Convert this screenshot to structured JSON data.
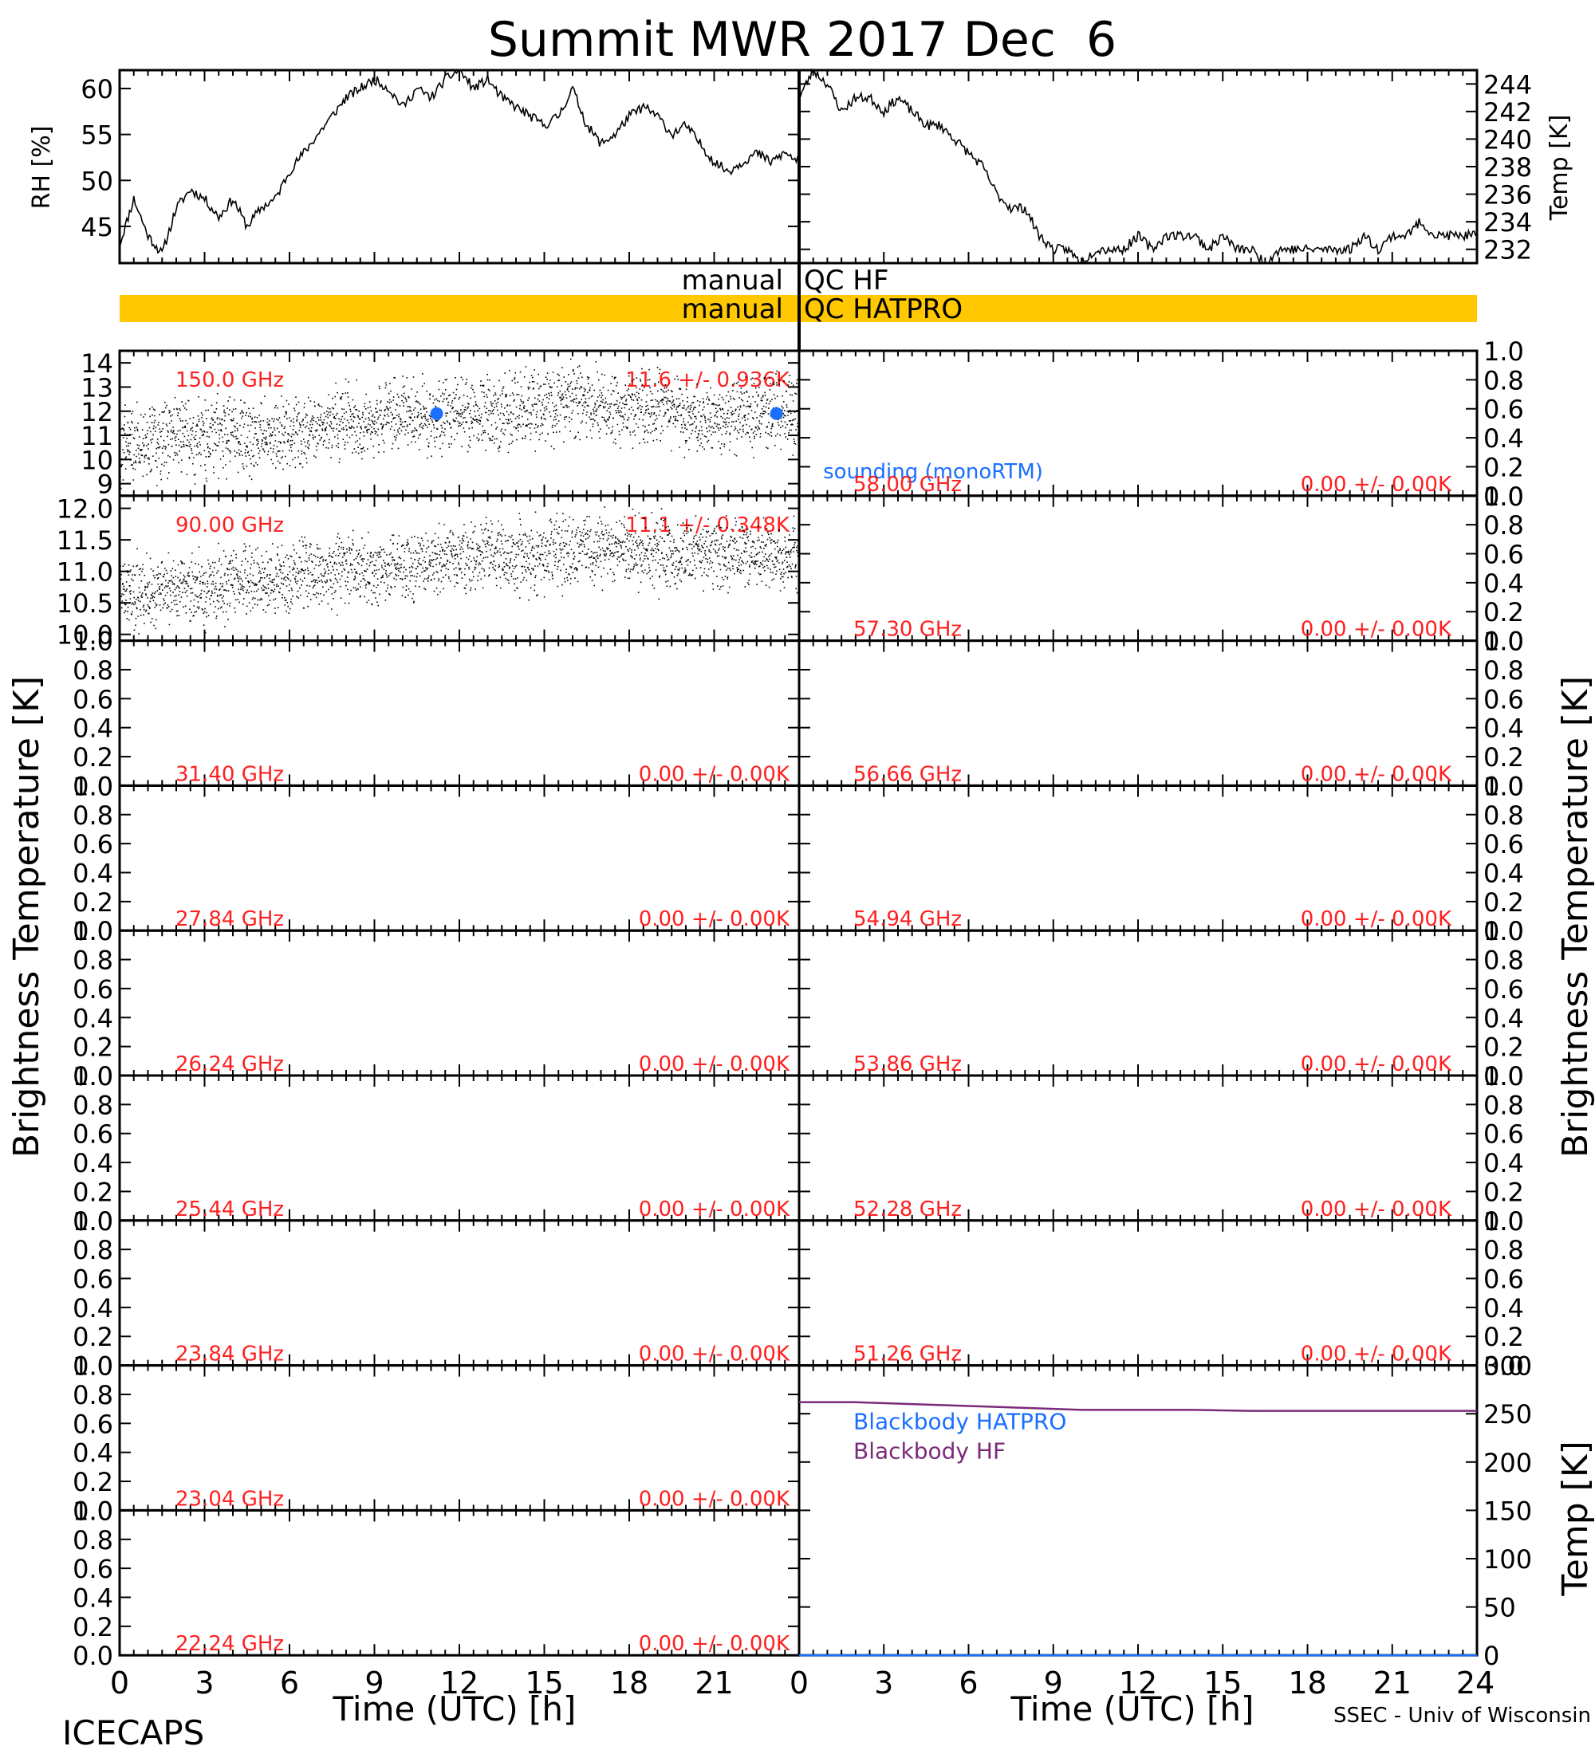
{
  "title": "Summit MWR 2017 Dec  6",
  "footer": {
    "left": "ICECAPS",
    "right": "SSEC - Univ of Wisconsin",
    "xlabel_left": "Time (UTC) [h]",
    "xlabel_right": "Time (UTC) [h]"
  },
  "side_labels": {
    "left": "Brightness Temperature [K]",
    "right": "Brightness Temperature [K]"
  },
  "qc_bars": [
    {
      "label_left": "manual",
      "label_right": "QC HF",
      "flagged": false,
      "color": "#ffffff"
    },
    {
      "label_left": "manual",
      "label_right": "QC HATPRO",
      "flagged": true,
      "color": "#ffc800"
    }
  ],
  "colors": {
    "data": "#000000",
    "label_red": "#ff2020",
    "sounding_blue": "#1a6fff",
    "blackbody_hatpro": "#1a6fff",
    "blackbody_hf": "#7a2a7a",
    "qc_flag": "#ffc800"
  },
  "chart_data": [
    {
      "id": "met-rh",
      "type": "line",
      "ylabel": "RH [%]",
      "x_range": [
        0,
        24
      ],
      "ylim": [
        41,
        62
      ],
      "yticks": [
        45,
        50,
        55,
        60
      ],
      "xticks": [
        0,
        3,
        6,
        9,
        12,
        15,
        18,
        21,
        24
      ],
      "series": [
        {
          "x": [
            0,
            0.5,
            1,
            1.5,
            2,
            2.5,
            3,
            3.5,
            4,
            4.5,
            5,
            5.5,
            6,
            6.5,
            7,
            7.5,
            8,
            8.5,
            9,
            9.5,
            10,
            10.5,
            11,
            11.5,
            12,
            12.5,
            13,
            13.5,
            14,
            14.5,
            15,
            15.5,
            16,
            16.5,
            17,
            17.5,
            18,
            18.5,
            19,
            19.5,
            20,
            20.5,
            21,
            21.5,
            22,
            22.5,
            23,
            23.5,
            24
          ],
          "values": [
            43,
            48,
            44,
            42,
            47,
            49,
            48,
            46,
            48,
            45,
            47,
            48,
            51,
            53,
            55,
            57,
            59,
            60,
            61,
            60,
            58,
            60,
            59,
            61,
            62,
            60,
            61,
            59,
            58,
            57,
            56,
            57,
            60,
            56,
            54,
            55,
            57,
            58,
            57,
            55,
            56,
            54,
            52,
            51,
            52,
            53,
            52,
            53,
            52
          ]
        }
      ]
    },
    {
      "id": "met-temp",
      "type": "line",
      "ylabel": "Temp [K]",
      "x_range": [
        0,
        24
      ],
      "ylim": [
        231,
        245
      ],
      "yticks": [
        232,
        234,
        236,
        238,
        240,
        242,
        244
      ],
      "xticks": [
        0,
        3,
        6,
        9,
        12,
        15,
        18,
        21,
        24
      ],
      "series": [
        {
          "x": [
            0,
            0.5,
            1,
            1.5,
            2,
            2.5,
            3,
            3.5,
            4,
            4.5,
            5,
            5.5,
            6,
            6.5,
            7,
            7.5,
            8,
            8.5,
            9,
            9.5,
            10,
            10.5,
            11,
            11.5,
            12,
            12.5,
            13,
            13.5,
            14,
            14.5,
            15,
            15.5,
            16,
            16.5,
            17,
            17.5,
            18,
            18.5,
            19,
            19.5,
            20,
            20.5,
            21,
            21.5,
            22,
            22.5,
            23,
            23.5,
            24
          ],
          "values": [
            243,
            245,
            244,
            242,
            243,
            243,
            242,
            243,
            242,
            241,
            241,
            240,
            239,
            238,
            236,
            235,
            235,
            233,
            232,
            232,
            231,
            232,
            232,
            232,
            233,
            232,
            233,
            233,
            233,
            232,
            233,
            232,
            232,
            231,
            232,
            232,
            232,
            232,
            232,
            232,
            233,
            232,
            233,
            233,
            234,
            233,
            233,
            233,
            233
          ]
        }
      ]
    },
    {
      "id": "tb-150",
      "type": "scatter",
      "channel": "150.0 GHz",
      "stats": "11.6 +/- 0.936K",
      "x_range": [
        0,
        24
      ],
      "ylim": [
        8.5,
        14.5
      ],
      "yticks": [
        9,
        10,
        11,
        12,
        13,
        14
      ],
      "series": [
        {
          "x": [
            0,
            1,
            2,
            3,
            4,
            5,
            6,
            7,
            8,
            9,
            10,
            11,
            12,
            13,
            14,
            15,
            16,
            17,
            18,
            19,
            20,
            21,
            22,
            23,
            24
          ],
          "values": [
            10.8,
            10.6,
            11.0,
            10.9,
            11.1,
            10.8,
            11.0,
            11.3,
            11.6,
            11.8,
            11.9,
            11.7,
            11.9,
            12.0,
            12.0,
            12.3,
            12.4,
            12.2,
            12.1,
            12.2,
            11.9,
            11.6,
            11.8,
            12.0,
            11.7
          ]
        }
      ],
      "sounding": {
        "label": "sounding (monoRTM)",
        "x": [
          11.2,
          23.2
        ],
        "values": [
          11.9,
          11.9
        ]
      }
    },
    {
      "id": "tb-90",
      "type": "scatter",
      "channel": "90.00 GHz",
      "stats": "11.1 +/- 0.348K",
      "x_range": [
        0,
        24
      ],
      "ylim": [
        9.9,
        12.2
      ],
      "yticks": [
        10.0,
        10.5,
        11.0,
        11.5,
        12.0
      ],
      "yticklabels": [
        "10.0",
        "10.5",
        "11.0",
        "11.5",
        "12.0"
      ],
      "series": [
        {
          "x": [
            0,
            1,
            2,
            3,
            4,
            5,
            6,
            7,
            8,
            9,
            10,
            11,
            12,
            13,
            14,
            15,
            16,
            17,
            18,
            19,
            20,
            21,
            22,
            23,
            24
          ],
          "values": [
            10.7,
            10.6,
            10.8,
            10.7,
            10.9,
            10.8,
            10.9,
            11.0,
            11.1,
            11.0,
            11.1,
            11.2,
            11.2,
            11.3,
            11.2,
            11.3,
            11.3,
            11.4,
            11.3,
            11.3,
            11.2,
            11.3,
            11.3,
            11.2,
            11.2
          ]
        }
      ]
    },
    {
      "id": "tb-58.00",
      "type": "scatter",
      "channel": "58.00 GHz",
      "stats": "0.00 +/- 0.00K",
      "ylim": [
        0,
        1
      ],
      "series": []
    },
    {
      "id": "tb-57.30",
      "type": "scatter",
      "channel": "57.30 GHz",
      "stats": "0.00 +/- 0.00K",
      "ylim": [
        0,
        1
      ],
      "series": []
    },
    {
      "id": "tb-31.40",
      "type": "scatter",
      "channel": "31.40 GHz",
      "stats": "0.00 +/- 0.00K",
      "ylim": [
        0,
        1
      ],
      "series": []
    },
    {
      "id": "tb-56.66",
      "type": "scatter",
      "channel": "56.66 GHz",
      "stats": "0.00 +/- 0.00K",
      "ylim": [
        0,
        1
      ],
      "series": []
    },
    {
      "id": "tb-27.84",
      "type": "scatter",
      "channel": "27.84 GHz",
      "stats": "0.00 +/- 0.00K",
      "ylim": [
        0,
        1
      ],
      "series": []
    },
    {
      "id": "tb-54.94",
      "type": "scatter",
      "channel": "54.94 GHz",
      "stats": "0.00 +/- 0.00K",
      "ylim": [
        0,
        1
      ],
      "series": []
    },
    {
      "id": "tb-26.24",
      "type": "scatter",
      "channel": "26.24 GHz",
      "stats": "0.00 +/- 0.00K",
      "ylim": [
        0,
        1
      ],
      "series": []
    },
    {
      "id": "tb-53.86",
      "type": "scatter",
      "channel": "53.86 GHz",
      "stats": "0.00 +/- 0.00K",
      "ylim": [
        0,
        1
      ],
      "series": []
    },
    {
      "id": "tb-25.44",
      "type": "scatter",
      "channel": "25.44 GHz",
      "stats": "0.00 +/- 0.00K",
      "ylim": [
        0,
        1
      ],
      "series": []
    },
    {
      "id": "tb-52.28",
      "type": "scatter",
      "channel": "52.28 GHz",
      "stats": "0.00 +/- 0.00K",
      "ylim": [
        0,
        1
      ],
      "series": []
    },
    {
      "id": "tb-23.84",
      "type": "scatter",
      "channel": "23.84 GHz",
      "stats": "0.00 +/- 0.00K",
      "ylim": [
        0,
        1
      ],
      "series": []
    },
    {
      "id": "tb-51.26",
      "type": "scatter",
      "channel": "51.26 GHz",
      "stats": "0.00 +/- 0.00K",
      "ylim": [
        0,
        1
      ],
      "series": []
    },
    {
      "id": "tb-23.04",
      "type": "scatter",
      "channel": "23.04 GHz",
      "stats": "0.00 +/- 0.00K",
      "ylim": [
        0,
        1
      ],
      "series": []
    },
    {
      "id": "tb-22.24",
      "type": "scatter",
      "channel": "22.24 GHz",
      "stats": "0.00 +/- 0.00K",
      "ylim": [
        0,
        1
      ],
      "series": []
    },
    {
      "id": "blackbody",
      "type": "line",
      "ylabel": "Temp [K]",
      "x_range": [
        0,
        24
      ],
      "ylim": [
        0,
        300
      ],
      "yticks": [
        0,
        50,
        100,
        150,
        200,
        250,
        300
      ],
      "xticks": [
        0,
        3,
        6,
        9,
        12,
        15,
        18,
        21,
        24
      ],
      "series": [
        {
          "name": "Blackbody HATPRO",
          "x": [
            0,
            24
          ],
          "values": [
            0,
            0
          ]
        },
        {
          "name": "Blackbody HF",
          "x": [
            0,
            2,
            4,
            6,
            8,
            10,
            12,
            14,
            16,
            18,
            20,
            22,
            24
          ],
          "values": [
            262,
            262,
            260,
            258,
            256,
            254,
            254,
            254,
            253,
            253,
            253,
            253,
            253
          ]
        }
      ]
    }
  ]
}
